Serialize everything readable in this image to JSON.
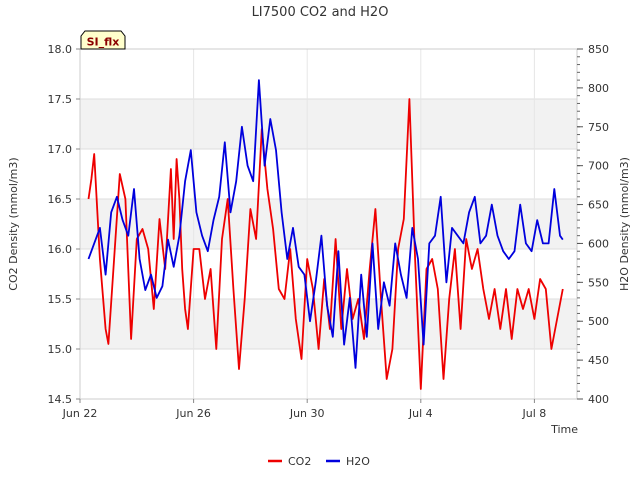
{
  "chart_data": {
    "type": "line",
    "title": "LI7500 CO2 and H2O",
    "badge": "SI_flx",
    "xlabel": "Time",
    "ylabel_left": "CO2 Density (mmol/m3)",
    "ylabel_right": "H2O Density (mmol/m3)",
    "xlim": [
      0,
      17.5
    ],
    "ylim_left": [
      14.5,
      18.0
    ],
    "ylim_right": [
      400,
      850
    ],
    "x_ticks": [
      {
        "value": 0,
        "label": "Jun 22"
      },
      {
        "value": 4,
        "label": "Jun 26"
      },
      {
        "value": 8,
        "label": "Jun 30"
      },
      {
        "value": 12,
        "label": "Jul 4"
      },
      {
        "value": 16,
        "label": "Jul 8"
      }
    ],
    "y_ticks_left": [
      "14.5",
      "15.0",
      "15.5",
      "16.0",
      "16.5",
      "17.0",
      "17.5",
      "18.0"
    ],
    "y_ticks_right": [
      "400",
      "450",
      "500",
      "550",
      "600",
      "650",
      "700",
      "750",
      "800",
      "850"
    ],
    "bands_left": [
      [
        15.0,
        15.5
      ],
      [
        16.0,
        16.5
      ],
      [
        17.0,
        17.5
      ]
    ],
    "legend_position": "bottom-center",
    "series": [
      {
        "name": "CO2",
        "color": "#ee0000",
        "axis": "left",
        "x": [
          0.3,
          0.4,
          0.5,
          0.7,
          0.9,
          1.0,
          1.2,
          1.4,
          1.6,
          1.8,
          2.0,
          2.2,
          2.4,
          2.6,
          2.8,
          3.0,
          3.2,
          3.3,
          3.4,
          3.5,
          3.6,
          3.7,
          3.8,
          4.0,
          4.2,
          4.4,
          4.6,
          4.8,
          5.0,
          5.2,
          5.4,
          5.6,
          5.8,
          6.0,
          6.2,
          6.4,
          6.6,
          6.8,
          7.0,
          7.2,
          7.4,
          7.6,
          7.8,
          8.0,
          8.2,
          8.4,
          8.6,
          8.8,
          9.0,
          9.2,
          9.4,
          9.6,
          9.8,
          10.0,
          10.2,
          10.4,
          10.6,
          10.8,
          11.0,
          11.2,
          11.4,
          11.6,
          11.8,
          12.0,
          12.2,
          12.4,
          12.6,
          12.8,
          13.0,
          13.2,
          13.4,
          13.6,
          13.8,
          14.0,
          14.2,
          14.4,
          14.6,
          14.8,
          15.0,
          15.2,
          15.4,
          15.6,
          15.8,
          16.0,
          16.2,
          16.4,
          16.6,
          16.8,
          17.0
        ],
        "values": [
          16.5,
          16.7,
          16.95,
          15.9,
          15.2,
          15.05,
          15.9,
          16.75,
          16.5,
          15.1,
          16.1,
          16.2,
          16.0,
          15.4,
          16.3,
          15.8,
          16.8,
          16.1,
          16.9,
          16.5,
          15.8,
          15.4,
          15.2,
          16.0,
          16.0,
          15.5,
          15.8,
          15.0,
          16.1,
          16.5,
          15.6,
          14.8,
          15.5,
          16.4,
          16.1,
          17.2,
          16.6,
          16.2,
          15.6,
          15.5,
          16.0,
          15.3,
          14.9,
          15.9,
          15.6,
          15.0,
          15.7,
          15.2,
          16.1,
          15.2,
          15.8,
          15.3,
          15.5,
          15.1,
          15.8,
          16.4,
          15.5,
          14.7,
          15.0,
          16.0,
          16.3,
          17.5,
          15.9,
          14.6,
          15.8,
          15.9,
          15.6,
          14.7,
          15.5,
          16.0,
          15.2,
          16.1,
          15.8,
          16.0,
          15.6,
          15.3,
          15.6,
          15.2,
          15.6,
          15.1,
          15.6,
          15.4,
          15.6,
          15.3,
          15.7,
          15.6,
          15.0,
          15.3,
          15.6
        ]
      },
      {
        "name": "H2O",
        "color": "#0000dd",
        "axis": "right",
        "x": [
          0.3,
          0.5,
          0.7,
          0.9,
          1.1,
          1.3,
          1.5,
          1.7,
          1.9,
          2.1,
          2.3,
          2.5,
          2.7,
          2.9,
          3.1,
          3.3,
          3.5,
          3.7,
          3.9,
          4.1,
          4.3,
          4.5,
          4.7,
          4.9,
          5.1,
          5.3,
          5.5,
          5.7,
          5.9,
          6.1,
          6.3,
          6.5,
          6.7,
          6.9,
          7.1,
          7.3,
          7.5,
          7.7,
          7.9,
          8.1,
          8.3,
          8.5,
          8.7,
          8.9,
          9.1,
          9.3,
          9.5,
          9.7,
          9.9,
          10.1,
          10.3,
          10.5,
          10.7,
          10.9,
          11.1,
          11.3,
          11.5,
          11.7,
          11.9,
          12.1,
          12.3,
          12.5,
          12.7,
          12.9,
          13.1,
          13.3,
          13.5,
          13.7,
          13.9,
          14.1,
          14.3,
          14.5,
          14.7,
          14.9,
          15.1,
          15.3,
          15.5,
          15.7,
          15.9,
          16.1,
          16.3,
          16.5,
          16.7,
          16.9,
          17.0
        ],
        "values": [
          580,
          600,
          620,
          560,
          640,
          660,
          630,
          610,
          670,
          580,
          540,
          560,
          530,
          545,
          605,
          570,
          610,
          680,
          720,
          640,
          610,
          590,
          630,
          660,
          730,
          640,
          680,
          750,
          700,
          680,
          810,
          700,
          760,
          720,
          640,
          580,
          620,
          570,
          560,
          500,
          550,
          610,
          520,
          480,
          590,
          470,
          530,
          440,
          560,
          480,
          600,
          490,
          550,
          520,
          600,
          560,
          530,
          620,
          580,
          470,
          600,
          610,
          660,
          550,
          620,
          610,
          600,
          640,
          660,
          600,
          610,
          650,
          610,
          590,
          580,
          590,
          650,
          600,
          590,
          630,
          600,
          600,
          670,
          610,
          605
        ]
      }
    ]
  }
}
